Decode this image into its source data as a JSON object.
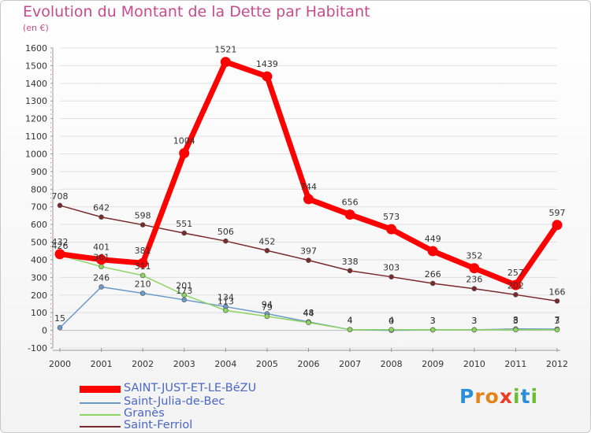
{
  "title": "Evolution du Montant de la Dette par Habitant",
  "unit_label": "(en €)",
  "brand": {
    "letters": [
      "P",
      "r",
      "o",
      "x",
      "i",
      "t",
      "i"
    ],
    "colors": [
      "#2a8ed8",
      "#e2831b",
      "#e2831b",
      "#ef3b26",
      "#6bbd33",
      "#2a8ed8",
      "#6bbd33"
    ]
  },
  "colors": {
    "title": "#c64b8c",
    "axis_text": "#333333",
    "grid": "#e0e0e0",
    "zero_line": "#bbbbbb"
  },
  "chart_data": {
    "type": "line",
    "x": [
      "2000",
      "2001",
      "2002",
      "2003",
      "2004",
      "2005",
      "2006",
      "2007",
      "2008",
      "2009",
      "2010",
      "2011",
      "2012"
    ],
    "ylim": [
      -100,
      1600
    ],
    "yticks": [
      "-100",
      "0",
      "100",
      "200",
      "300",
      "400",
      "500",
      "600",
      "700",
      "800",
      "900",
      "1000",
      "1100",
      "1200",
      "1300",
      "1400",
      "1500",
      "1600"
    ],
    "series": [
      {
        "name": "SAINT-JUST-ET-LE-BéZU",
        "color": "#ff0000",
        "values": [
          432,
          401,
          381,
          1004,
          1521,
          1439,
          744,
          656,
          573,
          449,
          352,
          257,
          597
        ],
        "labels": [
          "432",
          "401",
          "381",
          "1004",
          "1521",
          "1439",
          "744",
          "656",
          "573",
          "449",
          "352",
          "257",
          "597"
        ]
      },
      {
        "name": "Saint-Julia-de-Bec",
        "color": "#6b9ac9",
        "values": [
          15,
          246,
          210,
          173,
          134,
          94,
          48,
          4,
          0,
          3,
          3,
          8,
          7
        ],
        "labels": [
          "15",
          "246",
          "210",
          "173",
          "134",
          "94",
          "48",
          "4",
          "0",
          "3",
          "3",
          "8",
          "7"
        ]
      },
      {
        "name": "Granès",
        "color": "#8ed463",
        "values": [
          426,
          361,
          311,
          201,
          113,
          79,
          44,
          4,
          4,
          3,
          3,
          3,
          3
        ],
        "labels": [
          "426",
          "361",
          "311",
          "201",
          "113",
          "79",
          "44",
          "4",
          "4",
          "3",
          "3",
          "3",
          "3"
        ]
      },
      {
        "name": "Saint-Ferriol",
        "color": "#7a2a2a",
        "values": [
          708,
          642,
          598,
          551,
          506,
          452,
          397,
          338,
          303,
          266,
          236,
          202,
          166
        ],
        "labels": [
          "708",
          "642",
          "598",
          "551",
          "506",
          "452",
          "397",
          "338",
          "303",
          "266",
          "236",
          "202",
          "166"
        ]
      }
    ]
  }
}
